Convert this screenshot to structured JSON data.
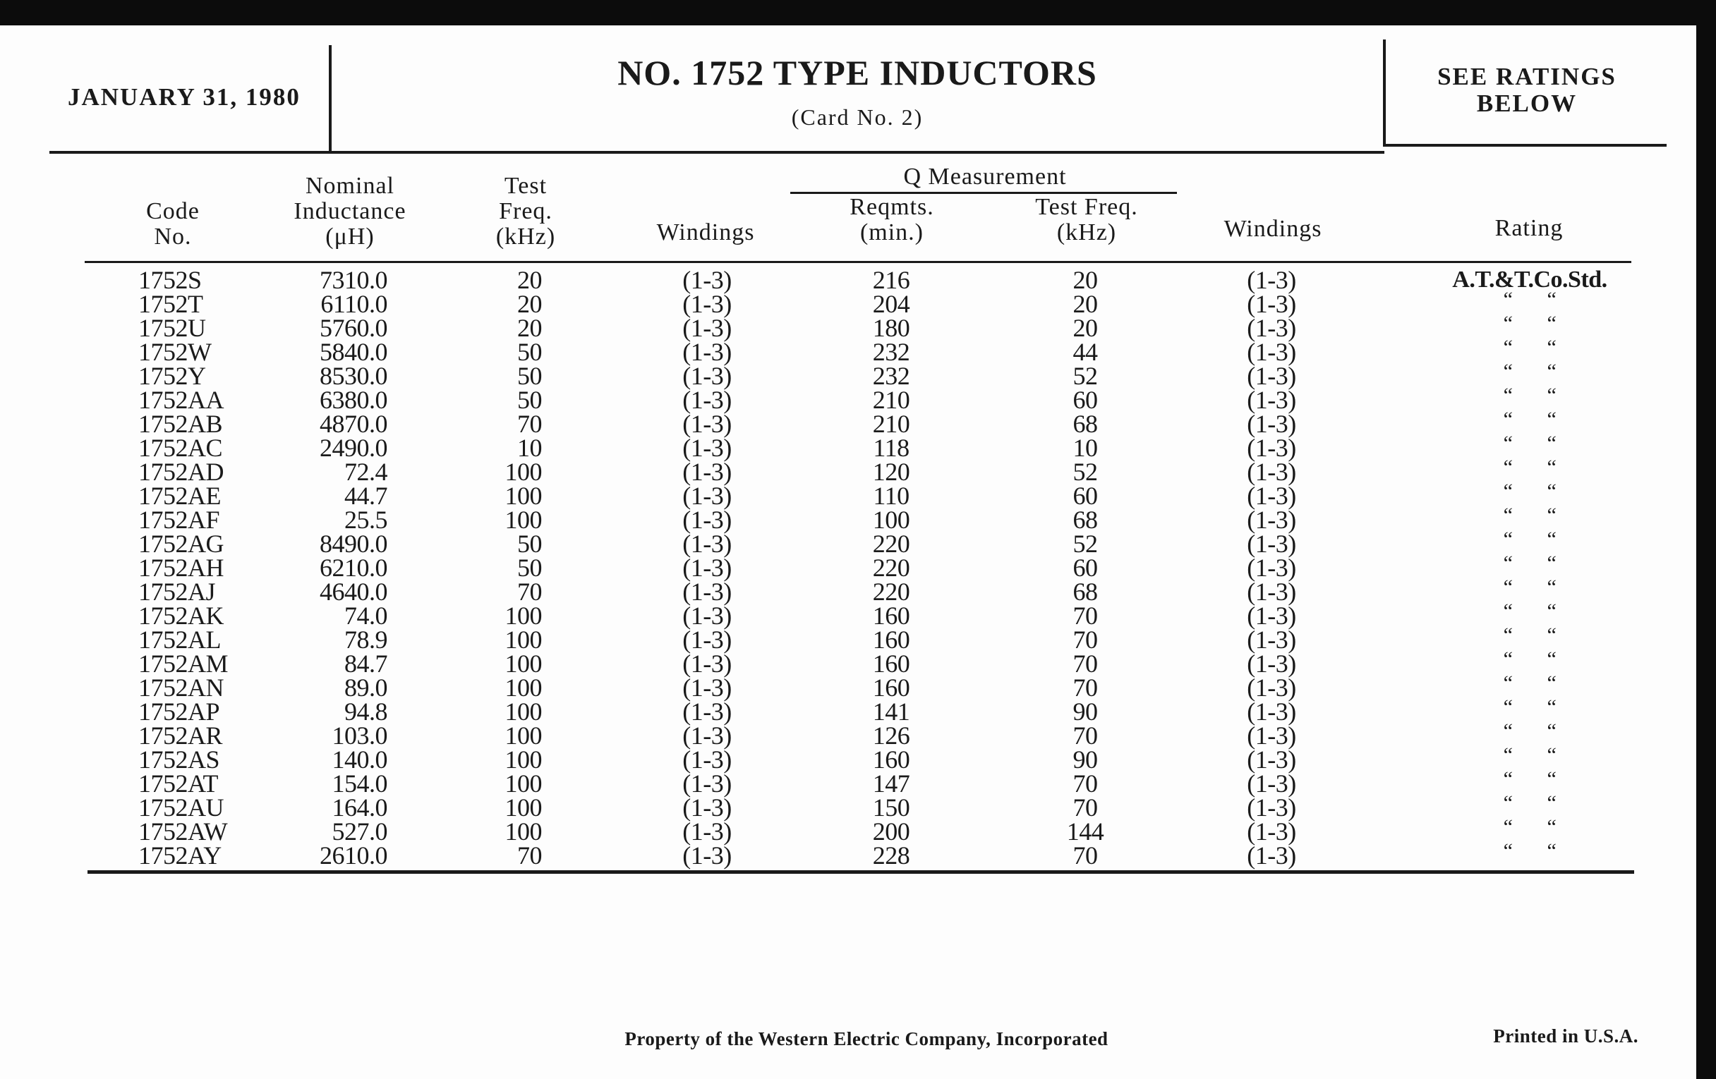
{
  "header": {
    "date": "JANUARY 31, 1980",
    "title": "NO. 1752 TYPE INDUCTORS",
    "subtitle": "(Card No. 2)",
    "ratings_note_line1": "SEE RATINGS",
    "ratings_note_line2": "BELOW"
  },
  "columns": {
    "code": [
      "Code",
      "No."
    ],
    "inductance": [
      "Nominal",
      "Inductance",
      "(μH)"
    ],
    "test_freq": [
      "Test",
      "Freq.",
      "(kHz)"
    ],
    "windings": "Windings",
    "q_group": "Q Measurement",
    "q_reqmts": [
      "Reqmts.",
      "(min.)"
    ],
    "q_test_freq": [
      "Test Freq.",
      "(kHz)"
    ],
    "q_windings": "Windings",
    "rating": "Rating"
  },
  "rows": [
    {
      "code": "1752S",
      "inductance": "7310.0",
      "test_freq": "20",
      "windings": "(1-3)",
      "q_min": "216",
      "q_freq": "20",
      "q_windings": "(1-3)",
      "rating": "A.T.&T.Co.Std."
    },
    {
      "code": "1752T",
      "inductance": "6110.0",
      "test_freq": "20",
      "windings": "(1-3)",
      "q_min": "204",
      "q_freq": "20",
      "q_windings": "(1-3)",
      "rating": "“       “"
    },
    {
      "code": "1752U",
      "inductance": "5760.0",
      "test_freq": "20",
      "windings": "(1-3)",
      "q_min": "180",
      "q_freq": "20",
      "q_windings": "(1-3)",
      "rating": "“       “"
    },
    {
      "code": "1752W",
      "inductance": "5840.0",
      "test_freq": "50",
      "windings": "(1-3)",
      "q_min": "232",
      "q_freq": "44",
      "q_windings": "(1-3)",
      "rating": "“       “"
    },
    {
      "code": "1752Y",
      "inductance": "8530.0",
      "test_freq": "50",
      "windings": "(1-3)",
      "q_min": "232",
      "q_freq": "52",
      "q_windings": "(1-3)",
      "rating": "“       “"
    },
    {
      "code": "1752AA",
      "inductance": "6380.0",
      "test_freq": "50",
      "windings": "(1-3)",
      "q_min": "210",
      "q_freq": "60",
      "q_windings": "(1-3)",
      "rating": "“       “"
    },
    {
      "code": "1752AB",
      "inductance": "4870.0",
      "test_freq": "70",
      "windings": "(1-3)",
      "q_min": "210",
      "q_freq": "68",
      "q_windings": "(1-3)",
      "rating": "“       “"
    },
    {
      "code": "1752AC",
      "inductance": "2490.0",
      "test_freq": "10",
      "windings": "(1-3)",
      "q_min": "118",
      "q_freq": "10",
      "q_windings": "(1-3)",
      "rating": "“       “"
    },
    {
      "code": "1752AD",
      "inductance": "72.4",
      "test_freq": "100",
      "windings": "(1-3)",
      "q_min": "120",
      "q_freq": "52",
      "q_windings": "(1-3)",
      "rating": "“       “"
    },
    {
      "code": "1752AE",
      "inductance": "44.7",
      "test_freq": "100",
      "windings": "(1-3)",
      "q_min": "110",
      "q_freq": "60",
      "q_windings": "(1-3)",
      "rating": "“       “"
    },
    {
      "code": "1752AF",
      "inductance": "25.5",
      "test_freq": "100",
      "windings": "(1-3)",
      "q_min": "100",
      "q_freq": "68",
      "q_windings": "(1-3)",
      "rating": "“       “"
    },
    {
      "code": "1752AG",
      "inductance": "8490.0",
      "test_freq": "50",
      "windings": "(1-3)",
      "q_min": "220",
      "q_freq": "52",
      "q_windings": "(1-3)",
      "rating": "“       “"
    },
    {
      "code": "1752AH",
      "inductance": "6210.0",
      "test_freq": "50",
      "windings": "(1-3)",
      "q_min": "220",
      "q_freq": "60",
      "q_windings": "(1-3)",
      "rating": "“       “"
    },
    {
      "code": "1752AJ",
      "inductance": "4640.0",
      "test_freq": "70",
      "windings": "(1-3)",
      "q_min": "220",
      "q_freq": "68",
      "q_windings": "(1-3)",
      "rating": "“       “"
    },
    {
      "code": "1752AK",
      "inductance": "74.0",
      "test_freq": "100",
      "windings": "(1-3)",
      "q_min": "160",
      "q_freq": "70",
      "q_windings": "(1-3)",
      "rating": "“       “"
    },
    {
      "code": "1752AL",
      "inductance": "78.9",
      "test_freq": "100",
      "windings": "(1-3)",
      "q_min": "160",
      "q_freq": "70",
      "q_windings": "(1-3)",
      "rating": "“       “"
    },
    {
      "code": "1752AM",
      "inductance": "84.7",
      "test_freq": "100",
      "windings": "(1-3)",
      "q_min": "160",
      "q_freq": "70",
      "q_windings": "(1-3)",
      "rating": "“       “"
    },
    {
      "code": "1752AN",
      "inductance": "89.0",
      "test_freq": "100",
      "windings": "(1-3)",
      "q_min": "160",
      "q_freq": "70",
      "q_windings": "(1-3)",
      "rating": "“       “"
    },
    {
      "code": "1752AP",
      "inductance": "94.8",
      "test_freq": "100",
      "windings": "(1-3)",
      "q_min": "141",
      "q_freq": "90",
      "q_windings": "(1-3)",
      "rating": "“       “"
    },
    {
      "code": "1752AR",
      "inductance": "103.0",
      "test_freq": "100",
      "windings": "(1-3)",
      "q_min": "126",
      "q_freq": "70",
      "q_windings": "(1-3)",
      "rating": "“       “"
    },
    {
      "code": "1752AS",
      "inductance": "140.0",
      "test_freq": "100",
      "windings": "(1-3)",
      "q_min": "160",
      "q_freq": "90",
      "q_windings": "(1-3)",
      "rating": "“       “"
    },
    {
      "code": "1752AT",
      "inductance": "154.0",
      "test_freq": "100",
      "windings": "(1-3)",
      "q_min": "147",
      "q_freq": "70",
      "q_windings": "(1-3)",
      "rating": "“       “"
    },
    {
      "code": "1752AU",
      "inductance": "164.0",
      "test_freq": "100",
      "windings": "(1-3)",
      "q_min": "150",
      "q_freq": "70",
      "q_windings": "(1-3)",
      "rating": "“       “"
    },
    {
      "code": "1752AW",
      "inductance": "527.0",
      "test_freq": "100",
      "windings": "(1-3)",
      "q_min": "200",
      "q_freq": "144",
      "q_windings": "(1-3)",
      "rating": "“       “"
    },
    {
      "code": "1752AY",
      "inductance": "2610.0",
      "test_freq": "70",
      "windings": "(1-3)",
      "q_min": "228",
      "q_freq": "70",
      "q_windings": "(1-3)",
      "rating": "“       “"
    }
  ],
  "footer": {
    "property": "Property of the Western Electric Company, Incorporated",
    "printed": "Printed in U.S.A."
  }
}
